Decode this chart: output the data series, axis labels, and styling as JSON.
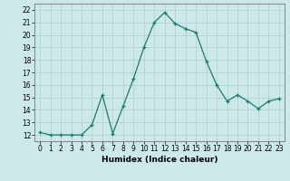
{
  "x": [
    0,
    1,
    2,
    3,
    4,
    5,
    6,
    7,
    8,
    9,
    10,
    11,
    12,
    13,
    14,
    15,
    16,
    17,
    18,
    19,
    20,
    21,
    22,
    23
  ],
  "y": [
    12.2,
    12.0,
    12.0,
    12.0,
    12.0,
    12.8,
    15.2,
    12.1,
    14.3,
    16.5,
    19.0,
    21.0,
    21.8,
    20.9,
    20.5,
    20.2,
    17.9,
    16.0,
    14.7,
    15.2,
    14.7,
    14.1,
    14.7,
    14.9
  ],
  "line_color": "#1a7a6e",
  "marker": "+",
  "bg_color": "#cde8e8",
  "grid_color": "#aed4d4",
  "xlabel": "Humidex (Indice chaleur)",
  "ylim": [
    11.5,
    22.5
  ],
  "yticks": [
    12,
    13,
    14,
    15,
    16,
    17,
    18,
    19,
    20,
    21,
    22
  ],
  "xticks": [
    0,
    1,
    2,
    3,
    4,
    5,
    6,
    7,
    8,
    9,
    10,
    11,
    12,
    13,
    14,
    15,
    16,
    17,
    18,
    19,
    20,
    21,
    22,
    23
  ],
  "tick_fontsize": 5.5,
  "xlabel_fontsize": 6.5,
  "linewidth": 0.9,
  "markersize": 3.0,
  "markeredgewidth": 0.9
}
